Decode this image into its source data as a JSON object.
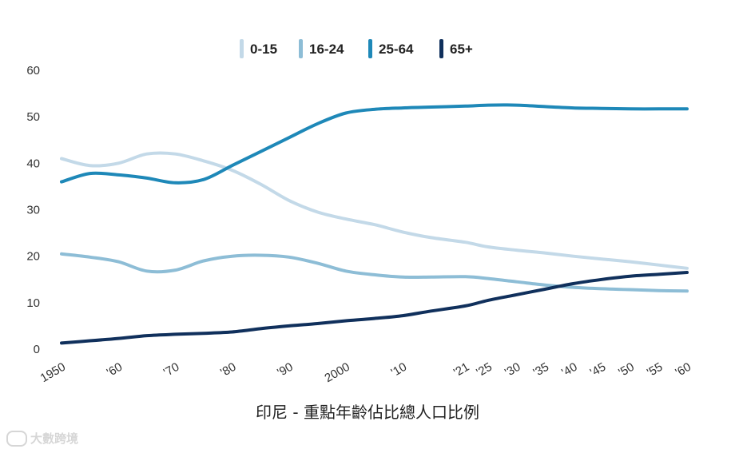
{
  "chart_data": {
    "type": "line",
    "title": "印尼 - 重點年齡佔比總人口比例",
    "x": [
      1950,
      1955,
      1960,
      1965,
      1970,
      1975,
      1980,
      1985,
      1990,
      1995,
      2000,
      2005,
      2010,
      2015,
      2021,
      2025,
      2030,
      2035,
      2040,
      2045,
      2050,
      2055,
      2060
    ],
    "x_tick_values": [
      1950,
      1960,
      1970,
      1980,
      1990,
      2000,
      2010,
      2021,
      2025,
      2030,
      2035,
      2040,
      2045,
      2050,
      2055,
      2060
    ],
    "x_tick_labels": [
      "1950",
      "'60",
      "'70",
      "'80",
      "'90",
      "2000",
      "'10",
      "'21",
      "'25",
      "'30",
      "'35",
      "'40",
      "'45",
      "'50",
      "'55",
      "'60"
    ],
    "y_ticks": [
      0,
      10,
      20,
      30,
      40,
      50,
      60
    ],
    "ylim": [
      0,
      60
    ],
    "xlabel": "",
    "ylabel": "",
    "legend_position": "top-center",
    "series": [
      {
        "name": "0-15",
        "color": "#c3d9e8",
        "values": [
          41,
          39.5,
          40,
          42,
          42,
          40.5,
          38.5,
          35.5,
          32,
          29.5,
          28,
          26.8,
          25.2,
          24,
          23,
          22,
          21.3,
          20.7,
          20,
          19.4,
          18.8,
          18.1,
          17.4
        ]
      },
      {
        "name": "16-24",
        "color": "#8dbdd6",
        "values": [
          20.5,
          19.8,
          18.8,
          16.8,
          17,
          19,
          20,
          20.2,
          19.8,
          18.5,
          16.8,
          16,
          15.5,
          15.5,
          15.6,
          15.2,
          14.5,
          13.8,
          13.3,
          13,
          12.8,
          12.6,
          12.5
        ]
      },
      {
        "name": "25-64",
        "color": "#1e88b8",
        "values": [
          36,
          37.8,
          37.5,
          36.8,
          35.8,
          36.5,
          39.5,
          42.5,
          45.5,
          48.5,
          50.8,
          51.6,
          51.9,
          52.1,
          52.3,
          52.5,
          52.5,
          52.2,
          51.9,
          51.8,
          51.7,
          51.7,
          51.7
        ]
      },
      {
        "name": "65+",
        "color": "#10305c",
        "values": [
          1.3,
          1.8,
          2.3,
          2.9,
          3.2,
          3.4,
          3.7,
          4.4,
          5.0,
          5.5,
          6.1,
          6.6,
          7.2,
          8.2,
          9.3,
          10.5,
          11.7,
          12.9,
          14.1,
          15.0,
          15.7,
          16.1,
          16.5
        ]
      }
    ]
  },
  "watermark": {
    "text": "大數跨境"
  }
}
